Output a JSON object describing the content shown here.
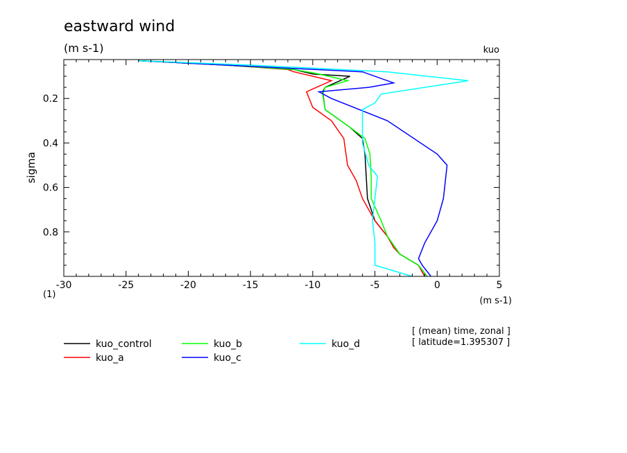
{
  "chart_data": {
    "type": "line",
    "title": "eastward wind",
    "subtitle": "(m s-1)",
    "dataset_label": "kuo",
    "ylabel": "sigma",
    "y_factor_label": "(1)",
    "xunits_label": "(m s-1)",
    "xlim": [
      -30,
      5
    ],
    "ylim": [
      1.0,
      0.025
    ],
    "y_inverted": true,
    "x_ticks": [
      -30,
      -25,
      -20,
      -15,
      -10,
      -5,
      0,
      5
    ],
    "x_tick_labels": [
      "-30",
      "-25",
      "-20",
      "-15",
      "-10",
      "-5",
      "0",
      "5"
    ],
    "y_ticks": [
      0.2,
      0.4,
      0.6,
      0.8
    ],
    "y_tick_labels": [
      "0.2",
      "0.4",
      "0.6",
      "0.8"
    ],
    "grid": false,
    "legend_placement": "below",
    "annotations": [
      "[ (mean) time, zonal ]",
      "[ latitude=1.395307 ]"
    ],
    "series": [
      {
        "name": "kuo_control",
        "color": "#000000",
        "x": [
          -24,
          -17,
          -11.5,
          -10,
          -7,
          -9,
          -9.2,
          -9,
          -7,
          -6,
          -5.8,
          -5.7,
          -5.6,
          -5,
          -4,
          -3,
          -1.5,
          -1
        ],
        "y": [
          0.03,
          0.05,
          0.07,
          0.09,
          0.1,
          0.15,
          0.17,
          0.25,
          0.33,
          0.38,
          0.45,
          0.55,
          0.65,
          0.75,
          0.82,
          0.9,
          0.95,
          1.0
        ]
      },
      {
        "name": "kuo_a",
        "color": "#ff0000",
        "x": [
          -24,
          -17,
          -12,
          -11.5,
          -8.5,
          -10.5,
          -10,
          -8.5,
          -7.5,
          -7.2,
          -6.5,
          -6,
          -5,
          -4,
          -3.5,
          -3,
          -1.5,
          -1
        ],
        "y": [
          0.03,
          0.05,
          0.07,
          0.08,
          0.12,
          0.17,
          0.24,
          0.3,
          0.38,
          0.5,
          0.57,
          0.65,
          0.75,
          0.82,
          0.87,
          0.9,
          0.95,
          1.0
        ]
      },
      {
        "name": "kuo_b",
        "color": "#00ff00",
        "x": [
          -24,
          -17,
          -11.5,
          -9.5,
          -7.2,
          -9,
          -9.2,
          -9,
          -7,
          -5.8,
          -5.4,
          -5.3,
          -5.3,
          -4.5,
          -4,
          -3,
          -1.5,
          -0.8
        ],
        "y": [
          0.03,
          0.05,
          0.07,
          0.09,
          0.12,
          0.15,
          0.18,
          0.25,
          0.33,
          0.38,
          0.45,
          0.55,
          0.65,
          0.75,
          0.82,
          0.9,
          0.95,
          1.0
        ]
      },
      {
        "name": "kuo_c",
        "color": "#0000ff",
        "x": [
          -24,
          -17,
          -6,
          -3.5,
          -5.5,
          -9.5,
          -8.5,
          -4,
          0,
          0.8,
          0.5,
          0,
          -1,
          -1.5,
          -1.2,
          -0.5
        ],
        "y": [
          0.03,
          0.05,
          0.08,
          0.13,
          0.15,
          0.17,
          0.2,
          0.3,
          0.45,
          0.5,
          0.65,
          0.75,
          0.85,
          0.92,
          0.95,
          1.0
        ]
      },
      {
        "name": "kuo_d",
        "color": "#00ffff",
        "x": [
          -24,
          -15,
          -4,
          2.5,
          -4.5,
          -5,
          -6,
          -6,
          -6,
          -5.5,
          -4.8,
          -5,
          -5.2,
          -5,
          -5,
          -2
        ],
        "y": [
          0.03,
          0.05,
          0.08,
          0.12,
          0.18,
          0.22,
          0.25,
          0.35,
          0.4,
          0.5,
          0.55,
          0.65,
          0.75,
          0.85,
          0.95,
          1.0
        ]
      }
    ]
  }
}
